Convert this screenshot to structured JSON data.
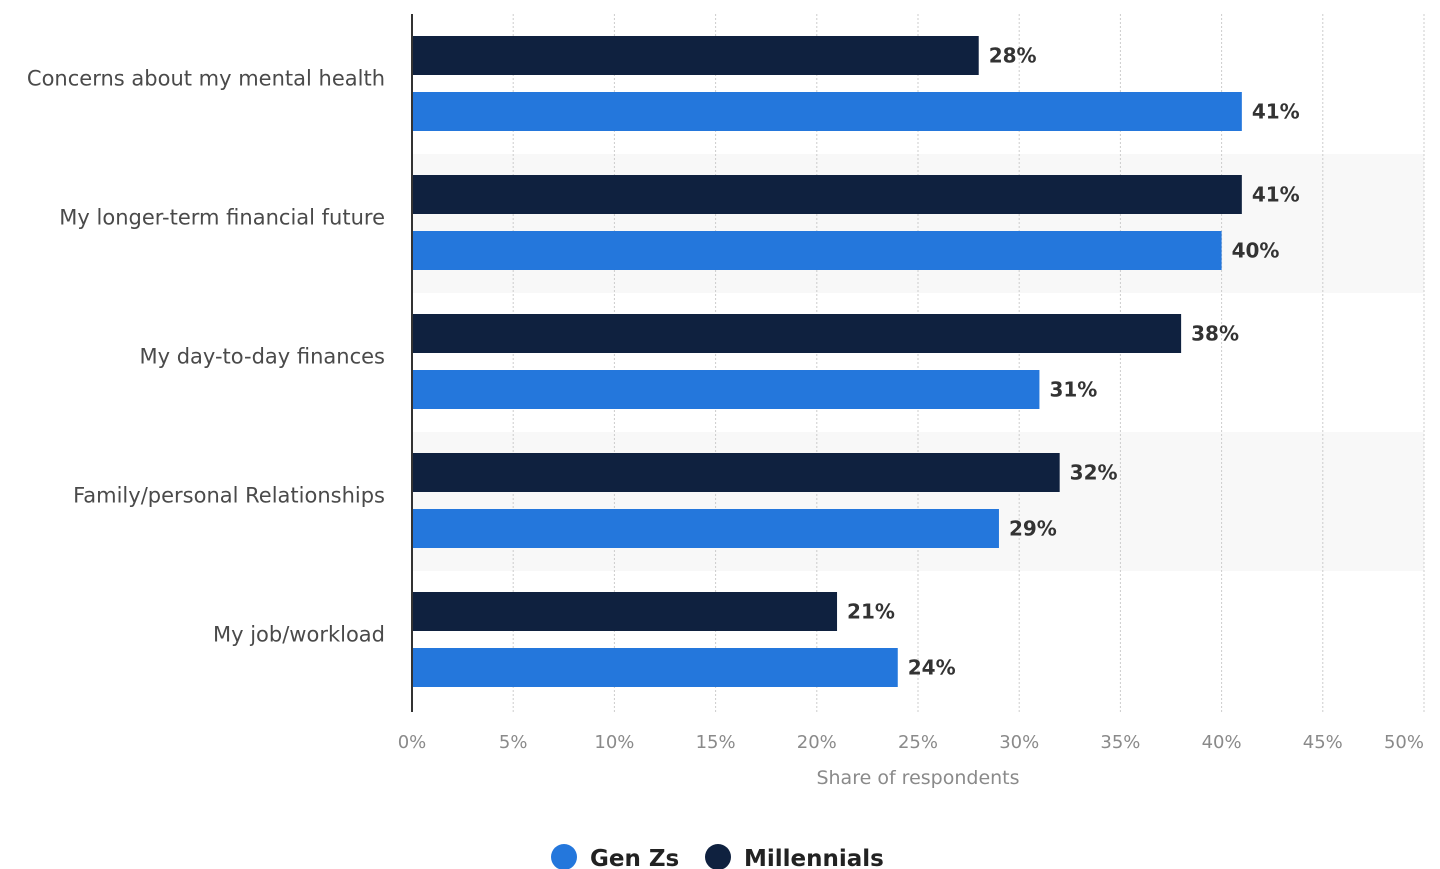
{
  "chart_data": {
    "type": "bar",
    "orientation": "horizontal",
    "categories": [
      "Concerns about my mental health",
      "My longer-term financial future",
      "My day-to-day finances",
      "Family/personal Relationships",
      "My job/workload"
    ],
    "series": [
      {
        "name": "Millennials",
        "color": "#0f213f",
        "values": [
          28,
          41,
          38,
          32,
          21
        ],
        "labels": [
          "28%",
          "41%",
          "38%",
          "32%",
          "21%"
        ]
      },
      {
        "name": "Gen Zs",
        "color": "#2477dc",
        "values": [
          41,
          40,
          31,
          29,
          24
        ],
        "labels": [
          "41%",
          "40%",
          "31%",
          "29%",
          "24%"
        ]
      }
    ],
    "xlabel": "Share of respondents",
    "ylabel": "",
    "xlim": [
      0,
      50
    ],
    "xticks": [
      0,
      5,
      10,
      15,
      20,
      25,
      30,
      35,
      40,
      45,
      50
    ],
    "xtick_labels": [
      "0%",
      "5%",
      "10%",
      "15%",
      "20%",
      "25%",
      "30%",
      "35%",
      "40%",
      "45%",
      "50%"
    ],
    "grid": true,
    "legend": {
      "position": "bottom-center",
      "entries": [
        {
          "name": "Gen Zs",
          "color": "#2477dc"
        },
        {
          "name": "Millennials",
          "color": "#0f213f"
        }
      ]
    },
    "band_color": "#f8f8f8",
    "grid_color": "#cccccc",
    "axis_color": "#333333"
  }
}
